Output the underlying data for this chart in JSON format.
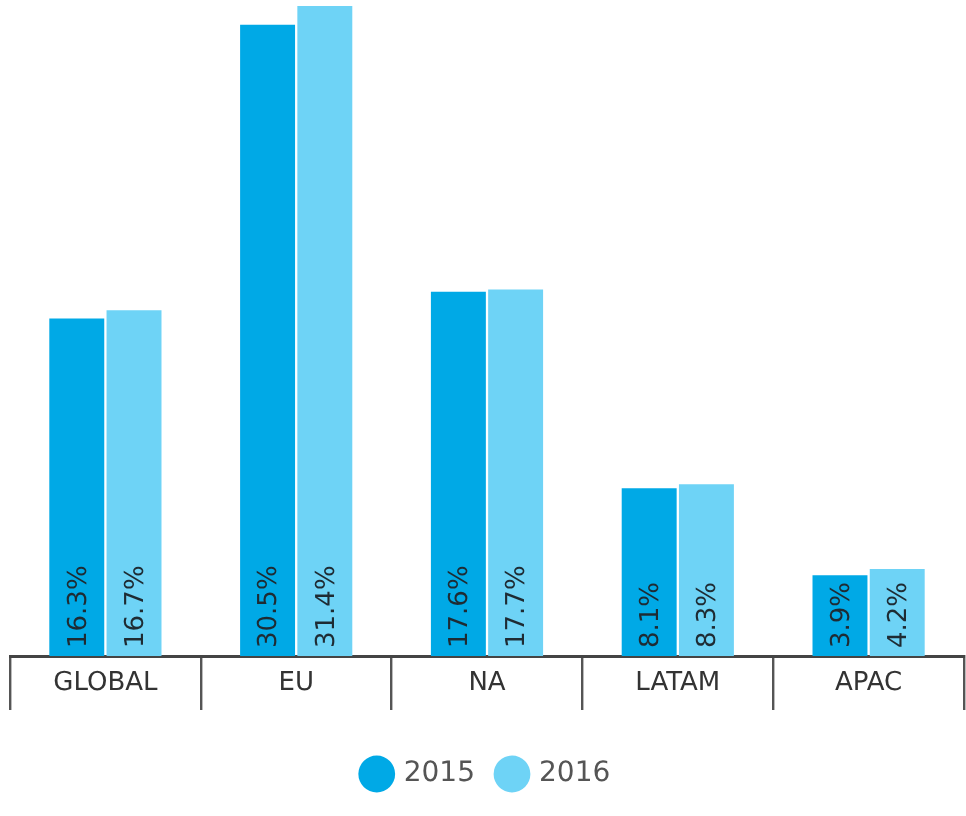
{
  "chart_data": {
    "type": "bar",
    "categories": [
      "GLOBAL",
      "EU",
      "NA",
      "LATAM",
      "APAC"
    ],
    "series": [
      {
        "name": "2015",
        "color": "#00a9e6",
        "values": [
          16.3,
          30.5,
          17.6,
          8.1,
          3.9
        ],
        "value_labels": [
          "16.3%",
          "30.5%",
          "17.6%",
          "8.1%",
          "3.9%"
        ]
      },
      {
        "name": "2016",
        "color": "#6ed3f6",
        "values": [
          16.7,
          31.4,
          17.7,
          8.3,
          4.2
        ],
        "value_labels": [
          "16.7%",
          "31.4%",
          "17.7%",
          "8.3%",
          "4.2%"
        ]
      }
    ],
    "legend": "bottom"
  }
}
